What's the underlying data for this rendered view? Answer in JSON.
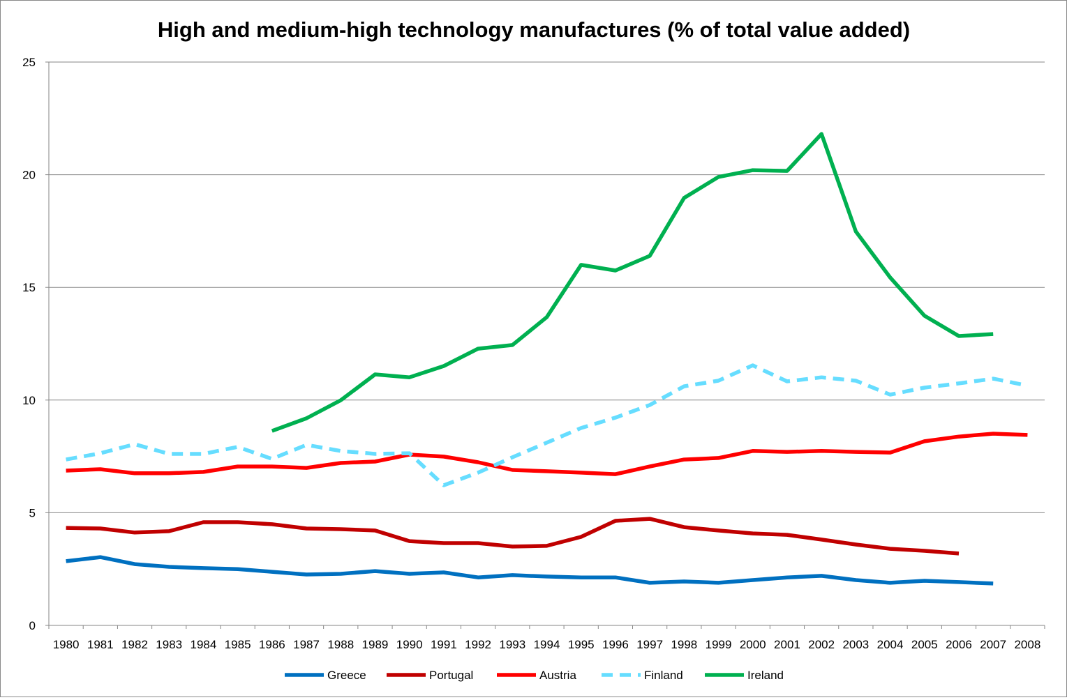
{
  "chart_data": {
    "type": "line",
    "title": "High and medium-high technology manufactures (% of total value added)",
    "xlabel": "",
    "ylabel": "",
    "ylim": [
      0,
      25
    ],
    "yticks": [
      0,
      5,
      10,
      15,
      20,
      25
    ],
    "grid": true,
    "legend_position": "bottom",
    "categories": [
      "1980",
      "1981",
      "1982",
      "1983",
      "1984",
      "1985",
      "1986",
      "1987",
      "1988",
      "1989",
      "1990",
      "1991",
      "1992",
      "1993",
      "1994",
      "1995",
      "1996",
      "1997",
      "1998",
      "1999",
      "2000",
      "2001",
      "2002",
      "2003",
      "2004",
      "2005",
      "2006",
      "2007",
      "2008"
    ],
    "series": [
      {
        "name": "Greece",
        "color": "#0070C0",
        "dash": false,
        "values": [
          2.85,
          3.03,
          2.72,
          2.6,
          2.54,
          2.5,
          2.38,
          2.26,
          2.29,
          2.41,
          2.29,
          2.35,
          2.13,
          2.23,
          2.17,
          2.13,
          2.13,
          1.89,
          1.95,
          1.89,
          2.01,
          2.13,
          2.2,
          2.01,
          1.89,
          1.98,
          1.92,
          1.86,
          null
        ]
      },
      {
        "name": "Portugal",
        "color": "#C00000",
        "dash": false,
        "values": [
          4.33,
          4.3,
          4.12,
          4.18,
          4.58,
          4.58,
          4.49,
          4.3,
          4.27,
          4.21,
          3.74,
          3.65,
          3.65,
          3.5,
          3.53,
          3.93,
          4.64,
          4.73,
          4.36,
          4.21,
          4.08,
          4.02,
          3.81,
          3.59,
          3.4,
          3.31,
          3.19,
          null,
          null
        ]
      },
      {
        "name": "Austria",
        "color": "#FF0000",
        "dash": false,
        "values": [
          6.87,
          6.93,
          6.75,
          6.75,
          6.81,
          7.05,
          7.05,
          6.99,
          7.21,
          7.27,
          7.58,
          7.49,
          7.24,
          6.9,
          6.84,
          6.78,
          6.71,
          7.05,
          7.36,
          7.43,
          7.74,
          7.7,
          7.74,
          7.7,
          7.67,
          8.17,
          8.38,
          8.51,
          8.45
        ]
      },
      {
        "name": "Finland",
        "color": "#66DDFF",
        "dash": true,
        "values": [
          7.36,
          7.64,
          8.04,
          7.61,
          7.61,
          7.92,
          7.39,
          8.01,
          7.74,
          7.61,
          7.64,
          6.22,
          6.78,
          7.46,
          8.11,
          8.76,
          9.22,
          9.78,
          10.61,
          10.86,
          11.54,
          10.83,
          11.01,
          10.86,
          10.24,
          10.55,
          10.74,
          10.95,
          10.64
        ]
      },
      {
        "name": "Ireland",
        "color": "#00B050",
        "dash": false,
        "values": [
          null,
          null,
          null,
          null,
          null,
          null,
          8.63,
          9.19,
          9.99,
          11.14,
          11.01,
          11.51,
          12.28,
          12.44,
          13.68,
          16.0,
          15.75,
          16.4,
          18.97,
          19.9,
          20.2,
          20.17,
          21.81,
          17.48,
          15.44,
          13.74,
          12.84,
          12.93,
          null
        ]
      }
    ]
  }
}
